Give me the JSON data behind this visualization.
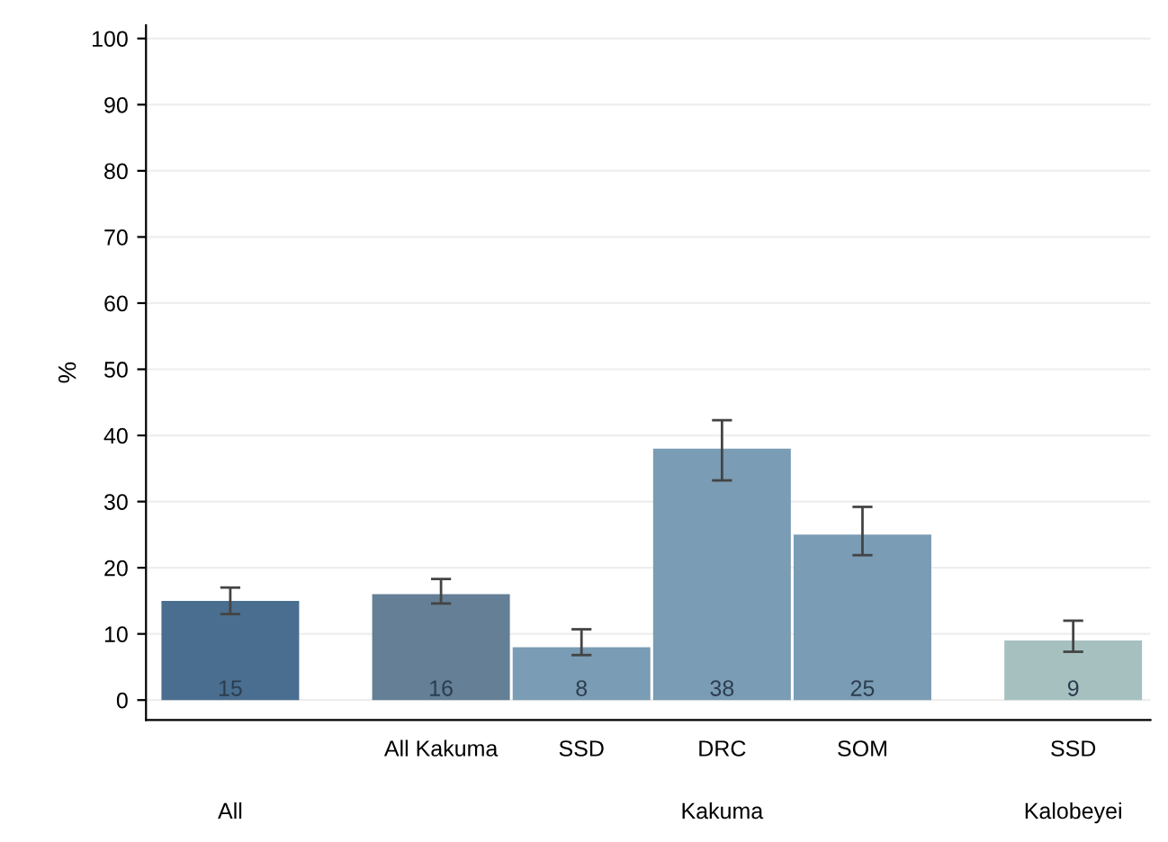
{
  "chart_data": {
    "type": "bar",
    "ylabel": "%",
    "categories": [
      null,
      "All Kakuma",
      "SSD",
      "DRC",
      "SOM",
      "SSD"
    ],
    "values": [
      15,
      16,
      8,
      38,
      25,
      9
    ],
    "colors": [
      "#4a6e8f",
      "#647f96",
      "#7a9cb4",
      "#7a9cb4",
      "#7a9cb4",
      "#a6c0c0"
    ],
    "errors": [
      [
        13,
        17
      ],
      [
        14.6,
        18.3
      ],
      [
        6.8,
        10.7
      ],
      [
        33.2,
        42.3
      ],
      [
        21.9,
        29.2
      ],
      [
        7.3,
        12
      ]
    ],
    "data_labels": true,
    "annotations": [
      "All",
      "Kakuma",
      "Kalobeyei"
    ],
    "ylim": [
      -3,
      102
    ],
    "yticks": [
      0,
      10,
      20,
      30,
      40,
      50,
      60,
      70,
      80,
      90,
      100
    ],
    "grid": "y"
  }
}
